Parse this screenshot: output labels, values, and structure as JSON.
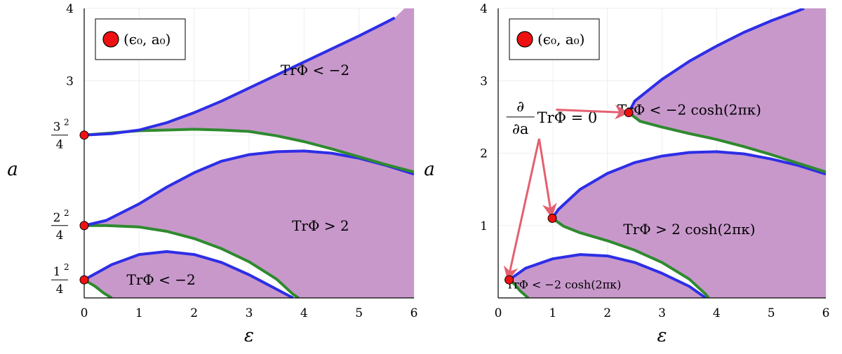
{
  "colors": {
    "fill": "#c898cb",
    "blue": "#2e2ee6",
    "green": "#2f8a2f",
    "marker": "#ef1111",
    "arrow": "#e46070",
    "grid": "#eeeeee"
  },
  "chart_data": [
    {
      "type": "area",
      "xlabel": "ε",
      "ylabel": "a",
      "xlim": [
        0,
        6
      ],
      "ylim": [
        0,
        4
      ],
      "xticks": [
        "0",
        "1",
        "2",
        "3",
        "4",
        "5",
        "6"
      ],
      "yticks": [
        {
          "value": 0.25,
          "num": "1",
          "exp": "2",
          "den": "4"
        },
        {
          "value": 1.0,
          "num": "2",
          "exp": "2",
          "den": "4"
        },
        {
          "value": 2.25,
          "num": "3",
          "exp": "2",
          "den": "4"
        },
        {
          "value": 3,
          "label": "3"
        },
        {
          "value": 4,
          "label": "4"
        }
      ],
      "legend": {
        "label": "(ϵ₀, a₀)",
        "placement": "top-left"
      },
      "region_labels": [
        {
          "text": "TrΦ < −2",
          "x": 4.2,
          "y": 3.15
        },
        {
          "text": "TrΦ > 2",
          "x": 4.3,
          "y": 1.0
        },
        {
          "text": "TrΦ < −2",
          "x": 1.4,
          "y": 0.25
        }
      ],
      "markers": [
        {
          "x": 0,
          "y": 0.25
        },
        {
          "x": 0,
          "y": 1.0
        },
        {
          "x": 0,
          "y": 2.25
        }
      ],
      "bands": [
        {
          "blue": [
            [
              0,
              0.25
            ],
            [
              0.5,
              0.46
            ],
            [
              1,
              0.6
            ],
            [
              1.5,
              0.64
            ],
            [
              2,
              0.6
            ],
            [
              2.5,
              0.49
            ],
            [
              3,
              0.32
            ],
            [
              3.5,
              0.12
            ],
            [
              3.8,
              0
            ]
          ],
          "green": [
            [
              0,
              0.25
            ],
            [
              0.2,
              0.16
            ],
            [
              0.35,
              0.07
            ],
            [
              0.5,
              0
            ]
          ]
        },
        {
          "blue": [
            [
              0,
              1.0
            ],
            [
              0.4,
              1.07
            ],
            [
              1,
              1.3
            ],
            [
              1.5,
              1.53
            ],
            [
              2,
              1.73
            ],
            [
              2.5,
              1.89
            ],
            [
              3,
              1.98
            ],
            [
              3.5,
              2.02
            ],
            [
              4,
              2.03
            ],
            [
              4.5,
              2.0
            ],
            [
              5,
              1.93
            ],
            [
              5.5,
              1.83
            ],
            [
              6,
              1.71
            ]
          ],
          "green": [
            [
              0,
              1.0
            ],
            [
              0.4,
              1.0
            ],
            [
              1,
              0.98
            ],
            [
              1.5,
              0.92
            ],
            [
              2,
              0.82
            ],
            [
              2.5,
              0.68
            ],
            [
              3,
              0.5
            ],
            [
              3.5,
              0.26
            ],
            [
              3.8,
              0.05
            ],
            [
              3.9,
              0
            ]
          ]
        },
        {
          "blue": [
            [
              0,
              2.25
            ],
            [
              0.5,
              2.27
            ],
            [
              1,
              2.32
            ],
            [
              1.5,
              2.42
            ],
            [
              2,
              2.56
            ],
            [
              2.5,
              2.72
            ],
            [
              3,
              2.9
            ],
            [
              3.5,
              3.08
            ],
            [
              4,
              3.26
            ],
            [
              4.5,
              3.44
            ],
            [
              5,
              3.62
            ],
            [
              5.5,
              3.81
            ],
            [
              5.65,
              3.87
            ]
          ],
          "green": [
            [
              0,
              2.25
            ],
            [
              0.5,
              2.28
            ],
            [
              1,
              2.31
            ],
            [
              1.5,
              2.32
            ],
            [
              2,
              2.33
            ],
            [
              2.5,
              2.32
            ],
            [
              3,
              2.3
            ],
            [
              3.5,
              2.24
            ],
            [
              4,
              2.16
            ],
            [
              4.5,
              2.06
            ],
            [
              5,
              1.95
            ],
            [
              5.5,
              1.84
            ],
            [
              6,
              1.74
            ]
          ]
        }
      ]
    },
    {
      "type": "area",
      "xlabel": "ε",
      "ylabel": "a",
      "xlim": [
        0,
        6
      ],
      "ylim": [
        0,
        4
      ],
      "xticks": [
        "0",
        "1",
        "2",
        "3",
        "4",
        "5",
        "6"
      ],
      "yticks": [
        {
          "value": 1,
          "label": "1"
        },
        {
          "value": 2,
          "label": "2"
        },
        {
          "value": 3,
          "label": "3"
        },
        {
          "value": 4,
          "label": "4"
        }
      ],
      "legend": {
        "label": "(ϵ₀, a₀)",
        "placement": "top-left"
      },
      "region_labels": [
        {
          "text": "TrΦ < −2 cosh(2πκ)",
          "x": 3.5,
          "y": 2.6
        },
        {
          "text": "TrΦ > 2 cosh(2πκ)",
          "x": 3.5,
          "y": 0.95
        },
        {
          "text": "TrΦ < −2 cosh(2πκ)",
          "x": 1.2,
          "y": 0.2
        }
      ],
      "annotation": {
        "prefix_num": "∂",
        "prefix_den": "∂a",
        "text": "TrΦ = 0",
        "x": 0.15,
        "y": 2.5,
        "arrows": [
          {
            "from": [
              1.06,
              2.6
            ],
            "to": [
              2.38,
              2.56
            ]
          },
          {
            "from": [
              0.75,
              2.2
            ],
            "to": [
              0.98,
              1.12
            ]
          },
          {
            "from": [
              0.75,
              2.2
            ],
            "to": [
              0.18,
              0.25
            ]
          }
        ]
      },
      "markers": [
        {
          "x": 0.2,
          "y": 0.25
        },
        {
          "x": 0.99,
          "y": 1.1
        },
        {
          "x": 2.39,
          "y": 2.56
        }
      ],
      "bands": [
        {
          "blue": [
            [
              0.2,
              0.25
            ],
            [
              0.5,
              0.41
            ],
            [
              1,
              0.54
            ],
            [
              1.5,
              0.6
            ],
            [
              2,
              0.58
            ],
            [
              2.5,
              0.49
            ],
            [
              3,
              0.34
            ],
            [
              3.5,
              0.16
            ],
            [
              3.8,
              0
            ]
          ],
          "green": [
            [
              0.2,
              0.25
            ],
            [
              0.3,
              0.19
            ],
            [
              0.4,
              0.1
            ],
            [
              0.55,
              0
            ]
          ]
        },
        {
          "blue": [
            [
              0.99,
              1.1
            ],
            [
              1.1,
              1.22
            ],
            [
              1.5,
              1.5
            ],
            [
              2,
              1.72
            ],
            [
              2.5,
              1.87
            ],
            [
              3,
              1.96
            ],
            [
              3.5,
              2.01
            ],
            [
              4,
              2.02
            ],
            [
              4.5,
              1.99
            ],
            [
              5,
              1.92
            ],
            [
              5.5,
              1.83
            ],
            [
              6,
              1.71
            ]
          ],
          "green": [
            [
              0.99,
              1.1
            ],
            [
              1.2,
              0.99
            ],
            [
              1.5,
              0.9
            ],
            [
              2,
              0.79
            ],
            [
              2.5,
              0.66
            ],
            [
              3,
              0.49
            ],
            [
              3.5,
              0.26
            ],
            [
              3.8,
              0.05
            ],
            [
              3.85,
              0
            ]
          ]
        },
        {
          "blue": [
            [
              2.39,
              2.56
            ],
            [
              2.5,
              2.72
            ],
            [
              3,
              3.02
            ],
            [
              3.5,
              3.27
            ],
            [
              4,
              3.48
            ],
            [
              4.5,
              3.67
            ],
            [
              5,
              3.83
            ],
            [
              5.5,
              3.97
            ],
            [
              5.6,
              4.0
            ]
          ],
          "green": [
            [
              2.39,
              2.56
            ],
            [
              2.6,
              2.44
            ],
            [
              3,
              2.36
            ],
            [
              3.5,
              2.27
            ],
            [
              4,
              2.19
            ],
            [
              4.5,
              2.09
            ],
            [
              5,
              1.98
            ],
            [
              5.5,
              1.86
            ],
            [
              6,
              1.74
            ]
          ]
        }
      ]
    }
  ]
}
